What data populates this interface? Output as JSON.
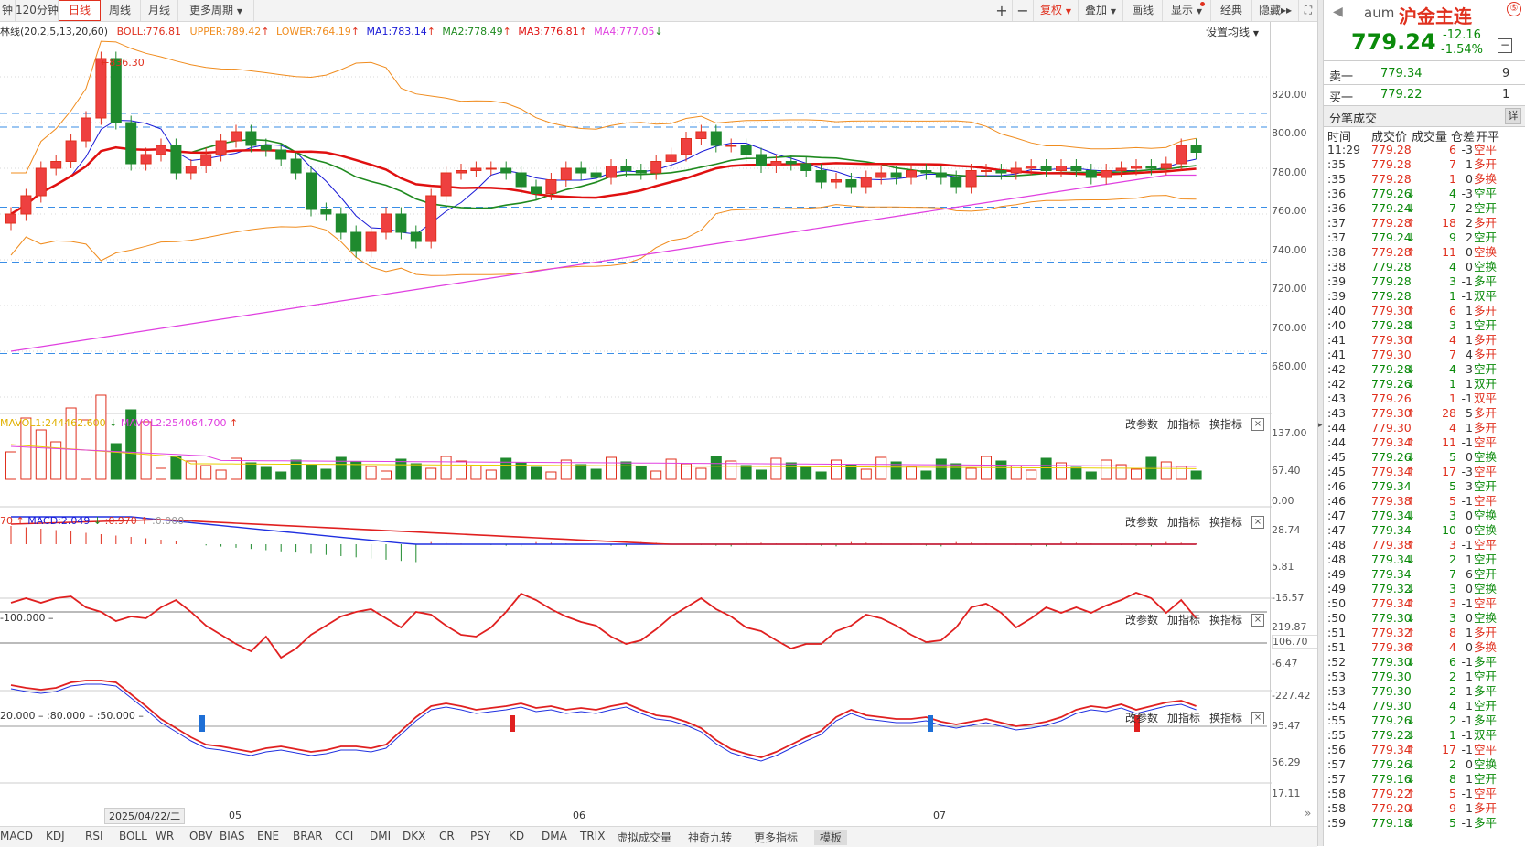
{
  "toolbar": {
    "periods": [
      "钟",
      "120分钟",
      "日线",
      "周线",
      "月线",
      "更多周期"
    ],
    "active_period": "日线",
    "right_buttons": [
      "复权",
      "叠加",
      "画线",
      "显示",
      "经典",
      "隐藏"
    ],
    "plus": "+",
    "minus": "−"
  },
  "main_chart": {
    "indicator_line": {
      "prefix": "林线(20,2,5,13,20,60)",
      "boll": "BOLL:776.81",
      "upper": "UPPER:789.42",
      "lower": "LOWER:764.19",
      "ma1": "MA1:783.14",
      "ma2": "MA2:778.49",
      "ma3": "MA3:776.81",
      "ma4": "MA4:777.05"
    },
    "settings_label": "设置均线",
    "high_label": "836.30",
    "y_axis": [
      "820.00",
      "800.00",
      "780.00",
      "760.00",
      "740.00",
      "720.00",
      "700.00",
      "680.00"
    ]
  },
  "vol_pane": {
    "mavol1": "MAVOL1:244462.600",
    "mavol2": "MAVOL2:254064.700",
    "y_axis": [
      "137.00",
      "67.40",
      "0.00"
    ]
  },
  "macd_pane": {
    "label": "70",
    "macd": "MACD:2.049",
    "dea": ":0.970",
    "zero": ":0.000",
    "y_axis": [
      "28.74",
      "5.81",
      "-16.57"
    ]
  },
  "cci_pane": {
    "label": "-100.000",
    "y_axis": [
      "219.87",
      "106.70",
      "-6.47",
      "-227.42"
    ]
  },
  "kdj_pane": {
    "label1": "20.000",
    "label2": ":80.000",
    "label3": ":50.000",
    "y_axis": [
      "95.47",
      "56.29",
      "17.11"
    ]
  },
  "pane_buttons": {
    "params": "改参数",
    "add": "加指标",
    "switch": "换指标",
    "close": "×"
  },
  "x_axis": {
    "date_box": "2025/04/22/二",
    "months": [
      "05",
      "06",
      "07"
    ]
  },
  "bottom_tabs": [
    "MACD",
    "KDJ",
    "RSI",
    "BOLL",
    "WR",
    "OBV",
    "BIAS",
    "ENE",
    "BRAR",
    "CCI",
    "DMI",
    "DKX",
    "CR",
    "PSY",
    "KD",
    "DMA",
    "TRIX",
    "虚拟成交量",
    "神奇九转",
    "更多指标",
    "模板"
  ],
  "selected_bottom_tab": "模板",
  "quote": {
    "code": "aum",
    "name": "沪金主连",
    "price": "779.24",
    "change": "-12.16",
    "pct": "-1.54%",
    "sell_label": "卖一",
    "sell_price": "779.34",
    "sell_vol": "9",
    "buy_label": "买一",
    "buy_price": "779.22",
    "buy_vol": "1"
  },
  "ticks": {
    "title": "分笔成交",
    "detail": "详",
    "headers": [
      "时间",
      "成交价",
      "成交量",
      "仓差",
      "开平"
    ],
    "rows": [
      [
        "11:29",
        "779.28",
        "",
        "6",
        "-3",
        "空平",
        "r"
      ],
      [
        ":35",
        "779.28",
        "",
        "7",
        "1",
        "多开",
        "r"
      ],
      [
        ":35",
        "779.28",
        "",
        "1",
        "0",
        "多换",
        "r"
      ],
      [
        ":36",
        "779.26",
        "↓",
        "4",
        "-3",
        "空平",
        "g"
      ],
      [
        ":36",
        "779.24",
        "↓",
        "7",
        "2",
        "空开",
        "g"
      ],
      [
        ":37",
        "779.28",
        "↑",
        "18",
        "2",
        "多开",
        "r"
      ],
      [
        ":37",
        "779.24",
        "↓",
        "9",
        "2",
        "空开",
        "g"
      ],
      [
        ":38",
        "779.28",
        "↑",
        "11",
        "0",
        "空换",
        "r"
      ],
      [
        ":38",
        "779.28",
        "",
        "4",
        "0",
        "空换",
        "g"
      ],
      [
        ":39",
        "779.28",
        "",
        "3",
        "-1",
        "多平",
        "g"
      ],
      [
        ":39",
        "779.28",
        "",
        "1",
        "-1",
        "双平",
        "g"
      ],
      [
        ":40",
        "779.30",
        "↑",
        "6",
        "1",
        "多开",
        "r"
      ],
      [
        ":40",
        "779.28",
        "↓",
        "3",
        "1",
        "空开",
        "g"
      ],
      [
        ":41",
        "779.30",
        "↑",
        "4",
        "1",
        "多开",
        "r"
      ],
      [
        ":41",
        "779.30",
        "",
        "7",
        "4",
        "多开",
        "r"
      ],
      [
        ":42",
        "779.28",
        "↓",
        "4",
        "3",
        "空开",
        "g"
      ],
      [
        ":42",
        "779.26",
        "↓",
        "1",
        "1",
        "双开",
        "g"
      ],
      [
        ":43",
        "779.26",
        "",
        "1",
        "-1",
        "双平",
        "r"
      ],
      [
        ":43",
        "779.30",
        "↑",
        "28",
        "5",
        "多开",
        "r"
      ],
      [
        ":44",
        "779.30",
        "",
        "4",
        "1",
        "多开",
        "r"
      ],
      [
        ":44",
        "779.34",
        "↑",
        "11",
        "-1",
        "空平",
        "r"
      ],
      [
        ":45",
        "779.26",
        "↓",
        "5",
        "0",
        "空换",
        "g"
      ],
      [
        ":45",
        "779.34",
        "↑",
        "17",
        "-3",
        "空平",
        "r"
      ],
      [
        ":46",
        "779.34",
        "",
        "5",
        "3",
        "空开",
        "g"
      ],
      [
        ":46",
        "779.38",
        "↑",
        "5",
        "-1",
        "空平",
        "r"
      ],
      [
        ":47",
        "779.34",
        "↓",
        "3",
        "0",
        "空换",
        "g"
      ],
      [
        ":47",
        "779.34",
        "",
        "10",
        "0",
        "空换",
        "g"
      ],
      [
        ":48",
        "779.38",
        "↑",
        "3",
        "-1",
        "空平",
        "r"
      ],
      [
        ":48",
        "779.34",
        "↓",
        "2",
        "1",
        "空开",
        "g"
      ],
      [
        ":49",
        "779.34",
        "",
        "7",
        "6",
        "空开",
        "g"
      ],
      [
        ":49",
        "779.32",
        "↓",
        "3",
        "0",
        "空换",
        "g"
      ],
      [
        ":50",
        "779.34",
        "↑",
        "3",
        "-1",
        "空平",
        "r"
      ],
      [
        ":50",
        "779.30",
        "↓",
        "3",
        "0",
        "空换",
        "g"
      ],
      [
        ":51",
        "779.32",
        "↑",
        "8",
        "1",
        "多开",
        "r"
      ],
      [
        ":51",
        "779.36",
        "↑",
        "4",
        "0",
        "多换",
        "r"
      ],
      [
        ":52",
        "779.30",
        "↓",
        "6",
        "-1",
        "多平",
        "g"
      ],
      [
        ":53",
        "779.30",
        "",
        "2",
        "1",
        "空开",
        "g"
      ],
      [
        ":53",
        "779.30",
        "",
        "2",
        "-1",
        "多平",
        "g"
      ],
      [
        ":54",
        "779.30",
        "",
        "4",
        "1",
        "空开",
        "g"
      ],
      [
        ":55",
        "779.26",
        "↓",
        "2",
        "-1",
        "多平",
        "g"
      ],
      [
        ":55",
        "779.22",
        "↓",
        "1",
        "-1",
        "双平",
        "g"
      ],
      [
        ":56",
        "779.34",
        "↑",
        "17",
        "-1",
        "空平",
        "r"
      ],
      [
        ":57",
        "779.26",
        "↓",
        "2",
        "0",
        "空换",
        "g"
      ],
      [
        ":57",
        "779.16",
        "↓",
        "8",
        "1",
        "空开",
        "g"
      ],
      [
        ":58",
        "779.22",
        "↑",
        "5",
        "-1",
        "空平",
        "r"
      ],
      [
        ":58",
        "779.20",
        "↓",
        "9",
        "1",
        "多开",
        "r"
      ],
      [
        ":59",
        "779.18",
        "↓",
        "5",
        "-1",
        "多平",
        "g"
      ]
    ]
  },
  "colors": {
    "up": "#e0301e",
    "down": "#1f8a2e",
    "ma1": "#1a1ad6",
    "ma2": "#1f8a1f",
    "ma3": "#e01010",
    "ma4": "#e040e0",
    "boll": "#f08c1e"
  }
}
